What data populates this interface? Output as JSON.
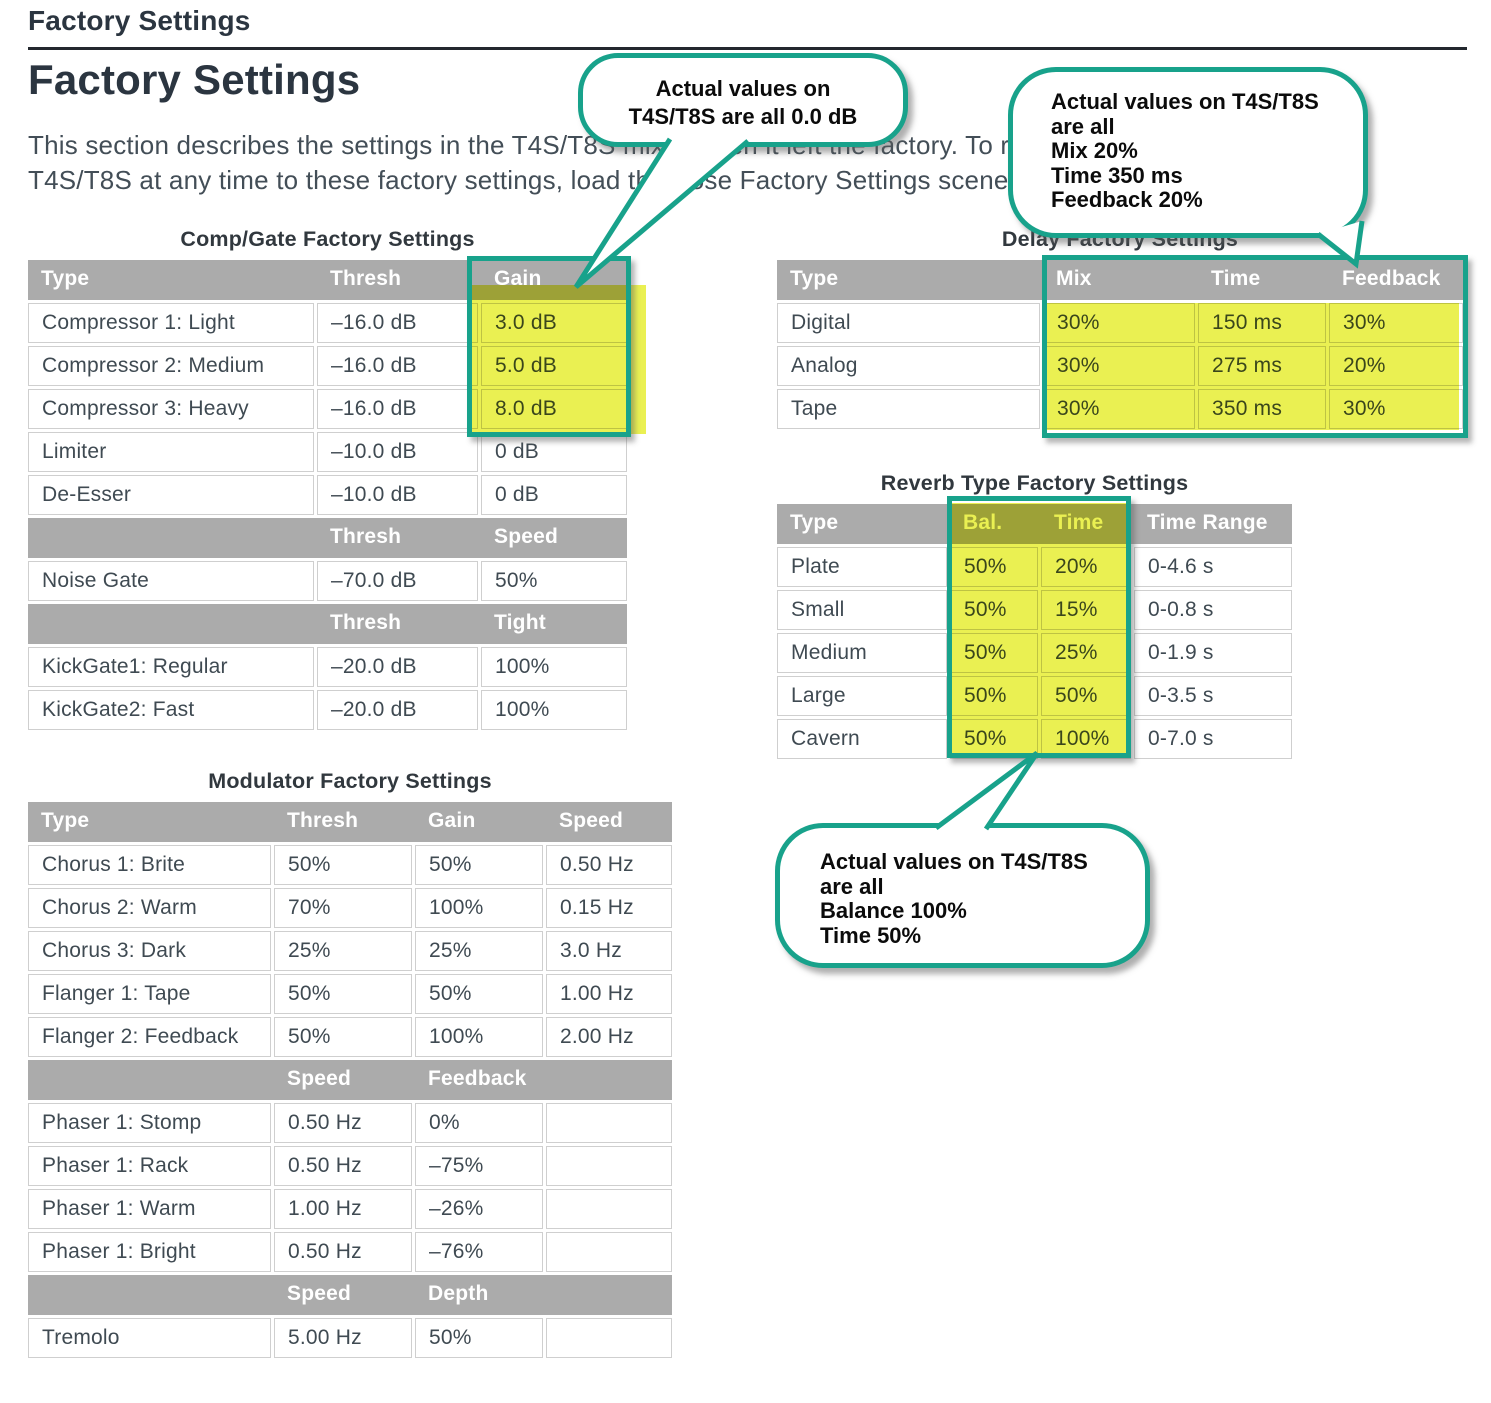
{
  "page": {
    "kicker": "Factory Settings",
    "title": "Factory Settings",
    "intro": {
      "line1": "This section describes the settings in the T4S/T8S mixer when it left the factory. To restore the",
      "line2": "T4S/T8S at any time to these factory settings, load the Bose Factory Settings scene."
    }
  },
  "callouts": {
    "comp_gain": {
      "lines": [
        "Actual values on",
        "T4S/T8S are all 0.0 dB"
      ]
    },
    "delay": {
      "lines": [
        "Actual values on T4S/T8S",
        "are all",
        "Mix 20%",
        "Time 350 ms",
        "Feedback 20%"
      ]
    },
    "reverb": {
      "lines": [
        "Actual values on T4S/T8S",
        "are all",
        "Balance 100%",
        "Time 50%"
      ]
    }
  },
  "tables": {
    "comp_gate": {
      "title": "Comp/Gate Factory Settings",
      "rows": [
        {
          "kind": "header",
          "cells": [
            "Type",
            "Thresh",
            "Gain"
          ]
        },
        {
          "kind": "data",
          "cells": [
            "Compressor 1: Light",
            "–16.0 dB",
            "3.0 dB"
          ]
        },
        {
          "kind": "data",
          "cells": [
            "Compressor 2: Medium",
            "–16.0 dB",
            "5.0 dB"
          ]
        },
        {
          "kind": "data",
          "cells": [
            "Compressor 3: Heavy",
            "–16.0 dB",
            "8.0 dB"
          ]
        },
        {
          "kind": "data",
          "cells": [
            "Limiter",
            "–10.0 dB",
            "0 dB"
          ]
        },
        {
          "kind": "data",
          "cells": [
            "De-Esser",
            "–10.0 dB",
            "0 dB"
          ]
        },
        {
          "kind": "header",
          "cells": [
            "",
            "Thresh",
            "Speed"
          ]
        },
        {
          "kind": "data",
          "cells": [
            "Noise Gate",
            "–70.0 dB",
            "50%"
          ]
        },
        {
          "kind": "header",
          "cells": [
            "",
            "Thresh",
            "Tight"
          ]
        },
        {
          "kind": "data",
          "cells": [
            "KickGate1: Regular",
            "–20.0 dB",
            "100%"
          ]
        },
        {
          "kind": "data",
          "cells": [
            "KickGate2: Fast",
            "–20.0 dB",
            "100%"
          ]
        }
      ]
    },
    "delay": {
      "title": "Delay Factory Settings",
      "rows": [
        {
          "kind": "header",
          "cells": [
            "Type",
            "Mix",
            "Time",
            "Feedback"
          ]
        },
        {
          "kind": "data",
          "cells": [
            "Digital",
            "30%",
            "150 ms",
            "30%"
          ]
        },
        {
          "kind": "data",
          "cells": [
            "Analog",
            "30%",
            "275 ms",
            "20%"
          ]
        },
        {
          "kind": "data",
          "cells": [
            "Tape",
            "30%",
            "350 ms",
            "30%"
          ]
        }
      ]
    },
    "reverb": {
      "title": "Reverb Type Factory Settings",
      "rows": [
        {
          "kind": "header",
          "cells": [
            "Type",
            "Bal.",
            "Time",
            "Time Range"
          ]
        },
        {
          "kind": "data",
          "cells": [
            "Plate",
            "50%",
            "20%",
            "0-4.6 s"
          ]
        },
        {
          "kind": "data",
          "cells": [
            "Small",
            "50%",
            "15%",
            "0-0.8 s"
          ]
        },
        {
          "kind": "data",
          "cells": [
            "Medium",
            "50%",
            "25%",
            "0-1.9 s"
          ]
        },
        {
          "kind": "data",
          "cells": [
            "Large",
            "50%",
            "50%",
            "0-3.5 s"
          ]
        },
        {
          "kind": "data",
          "cells": [
            "Cavern",
            "50%",
            "100%",
            "0-7.0 s"
          ]
        }
      ]
    },
    "modulator": {
      "title": "Modulator Factory Settings",
      "rows": [
        {
          "kind": "header",
          "cells": [
            "Type",
            "Thresh",
            "Gain",
            "Speed"
          ]
        },
        {
          "kind": "data",
          "cells": [
            "Chorus 1: Brite",
            "50%",
            "50%",
            "0.50 Hz"
          ]
        },
        {
          "kind": "data",
          "cells": [
            "Chorus 2: Warm",
            "70%",
            "100%",
            "0.15 Hz"
          ]
        },
        {
          "kind": "data",
          "cells": [
            "Chorus 3: Dark",
            "25%",
            "25%",
            "3.0 Hz"
          ]
        },
        {
          "kind": "data",
          "cells": [
            "Flanger 1: Tape",
            "50%",
            "50%",
            "1.00 Hz"
          ]
        },
        {
          "kind": "data",
          "cells": [
            "Flanger 2: Feedback",
            "50%",
            "100%",
            "2.00 Hz"
          ]
        },
        {
          "kind": "header",
          "cells": [
            "",
            "Speed",
            "Feedback",
            ""
          ]
        },
        {
          "kind": "data",
          "cells": [
            "Phaser 1: Stomp",
            "0.50 Hz",
            "0%",
            ""
          ]
        },
        {
          "kind": "data",
          "cells": [
            "Phaser 1: Rack",
            "0.50 Hz",
            "–75%",
            ""
          ]
        },
        {
          "kind": "data",
          "cells": [
            "Phaser 1: Warm",
            "1.00 Hz",
            "–26%",
            ""
          ]
        },
        {
          "kind": "data",
          "cells": [
            "Phaser 1: Bright",
            "0.50 Hz",
            "–76%",
            ""
          ]
        },
        {
          "kind": "header",
          "cells": [
            "",
            "Speed",
            "Depth",
            ""
          ]
        },
        {
          "kind": "data",
          "cells": [
            "Tremolo",
            "5.00 Hz",
            "50%",
            ""
          ]
        }
      ]
    }
  },
  "colors": {
    "accent_teal": "#18a28b",
    "highlight_yellow": "#eaf052",
    "header_gray": "#ababab",
    "heading_text": "#2b3540",
    "body_text": "#434e57"
  }
}
